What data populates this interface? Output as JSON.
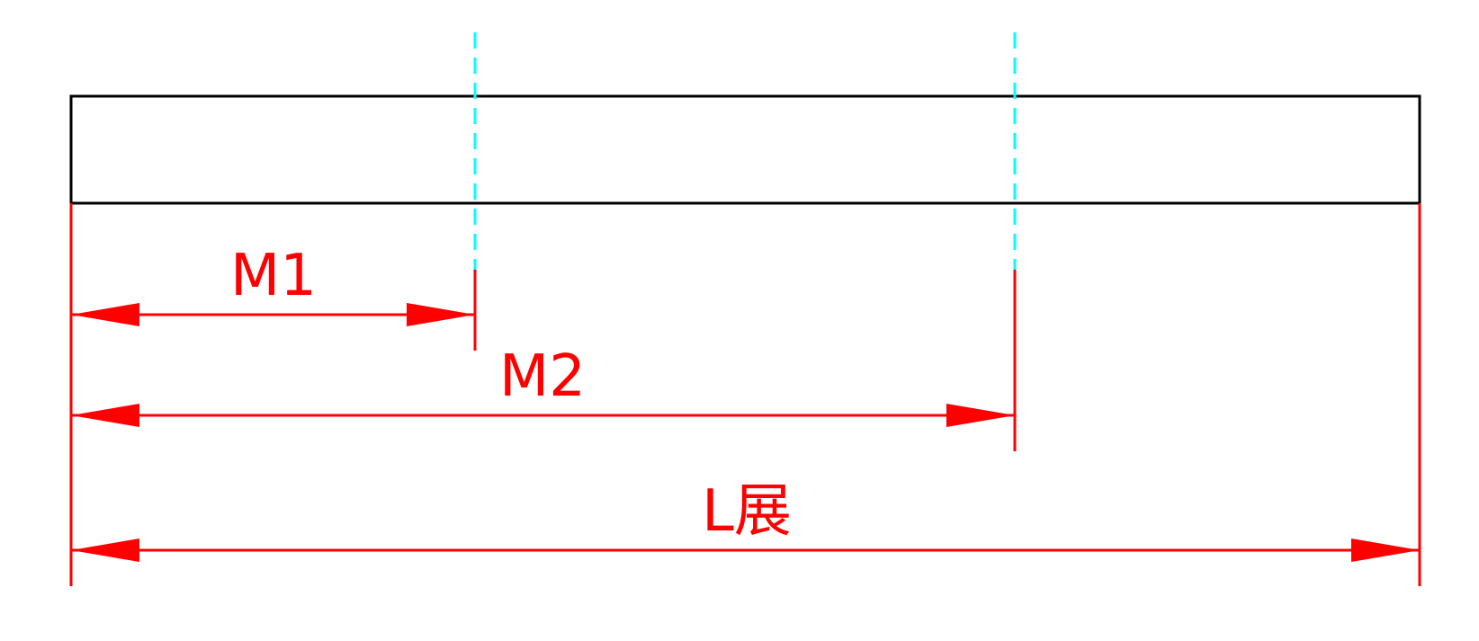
{
  "colors": {
    "background": "#ffffff",
    "part_outline": "#000000",
    "dimension": "#ff0000",
    "bend_line": "#00ffff"
  },
  "dimensions": {
    "m1": {
      "label": "M1"
    },
    "m2": {
      "label": "M2"
    },
    "l_total": {
      "label": "L展"
    }
  }
}
